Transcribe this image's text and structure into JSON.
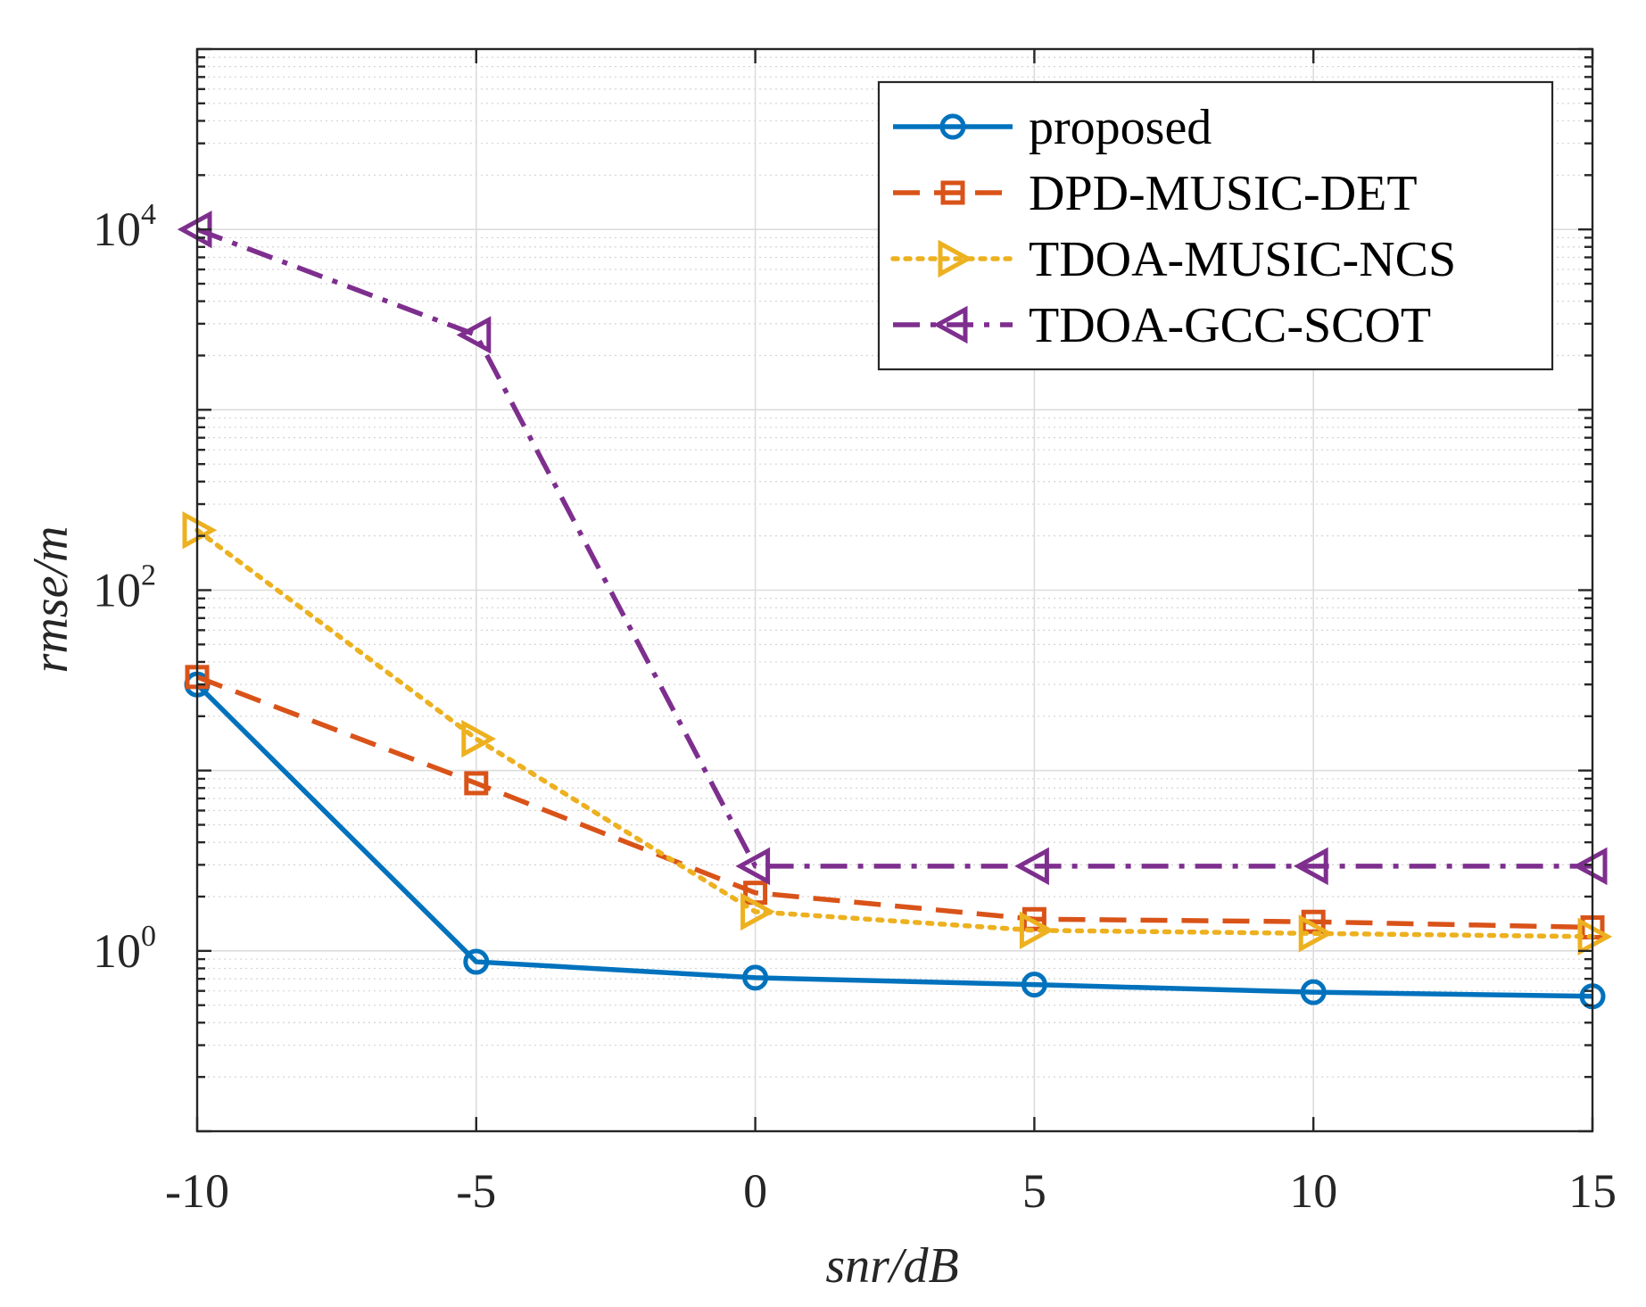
{
  "chart_data": {
    "type": "line",
    "xscale": "linear",
    "yscale": "log",
    "x": [
      -10,
      -5,
      0,
      5,
      10,
      15
    ],
    "xlim": [
      -10,
      15
    ],
    "ylim": [
      0.1,
      100000
    ],
    "xticks": [
      "-10",
      "-5",
      "0",
      "5",
      "10",
      "15"
    ],
    "yticks": [
      {
        "base": "10",
        "exp": "0",
        "value": 1
      },
      {
        "base": "10",
        "exp": "2",
        "value": 100
      },
      {
        "base": "10",
        "exp": "4",
        "value": 10000
      }
    ],
    "xlabel": "snr/dB",
    "ylabel": "rmse/m",
    "grid": true,
    "minor_grid": true,
    "legend_position": "top-right",
    "series": [
      {
        "name": "proposed",
        "color": "#0072BD",
        "line": "solid",
        "marker": "circle",
        "values": [
          30,
          0.87,
          0.71,
          0.65,
          0.59,
          0.56
        ]
      },
      {
        "name": "DPD-MUSIC-DET",
        "color": "#D95319",
        "line": "dashed",
        "marker": "square",
        "values": [
          33,
          8.5,
          2.1,
          1.5,
          1.45,
          1.35
        ]
      },
      {
        "name": "TDOA-MUSIC-NCS",
        "color": "#EDB120",
        "line": "dotted",
        "marker": "triangle-right",
        "values": [
          215,
          15,
          1.65,
          1.3,
          1.25,
          1.2
        ]
      },
      {
        "name": "TDOA-GCC-SCOT",
        "color": "#7E2F8E",
        "line": "dashdot",
        "marker": "triangle-left",
        "values": [
          10000,
          2600,
          2.95,
          2.95,
          2.95,
          2.95
        ]
      }
    ]
  }
}
